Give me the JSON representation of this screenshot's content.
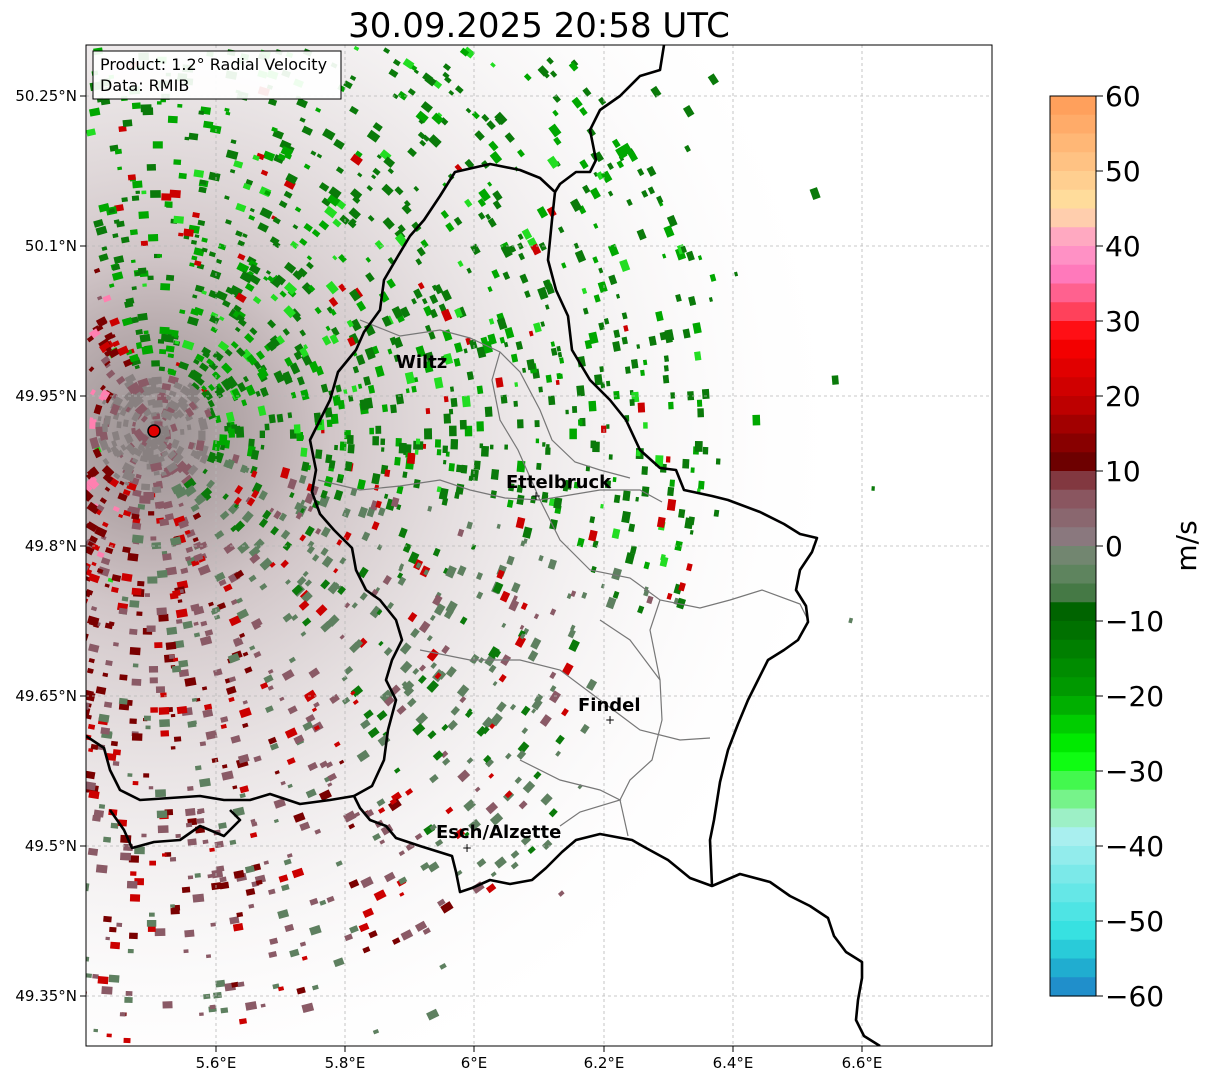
{
  "title": "30.09.2025 20:58 UTC",
  "info": {
    "product": "Product: 1.2° Radial Velocity",
    "source": "Data: RMIB"
  },
  "lat_ticks": [
    "50.25°N",
    "50.1°N",
    "49.95°N",
    "49.8°N",
    "49.65°N",
    "49.5°N",
    "49.35°N"
  ],
  "lon_ticks": [
    "5.6°E",
    "5.8°E",
    "6°E",
    "6.2°E",
    "6.4°E",
    "6.6°E"
  ],
  "cities": [
    {
      "name": "Wiltz"
    },
    {
      "name": "Ettelbruck"
    },
    {
      "name": "Findel"
    },
    {
      "name": "Esch/Alzette"
    }
  ],
  "colorbar": {
    "label": "m/s",
    "min": -60,
    "max": 60,
    "tick_labels": [
      "60",
      "50",
      "40",
      "30",
      "20",
      "10",
      "0",
      "−10",
      "−20",
      "−30",
      "−40",
      "−50",
      "−60"
    ],
    "stops": [
      {
        "value": 60,
        "color": "#ff9a55"
      },
      {
        "value": 50,
        "color": "#ffc88a"
      },
      {
        "value": 45,
        "color": "#ffe3a0"
      },
      {
        "value": 42,
        "color": "#ffb0c0"
      },
      {
        "value": 37,
        "color": "#ff80c8"
      },
      {
        "value": 32,
        "color": "#ff5070"
      },
      {
        "value": 28,
        "color": "#ff0000"
      },
      {
        "value": 19,
        "color": "#c00000"
      },
      {
        "value": 11,
        "color": "#6a0000"
      },
      {
        "value": 8,
        "color": "#8a4a55"
      },
      {
        "value": 1,
        "color": "#8a7a80"
      },
      {
        "value": -2,
        "color": "#6a8a6a"
      },
      {
        "value": -6,
        "color": "#4f7d4f"
      },
      {
        "value": -8,
        "color": "#006000"
      },
      {
        "value": -20,
        "color": "#00a000"
      },
      {
        "value": -28,
        "color": "#00ff00"
      },
      {
        "value": -35,
        "color": "#90f0a8"
      },
      {
        "value": -38,
        "color": "#b0f0f0"
      },
      {
        "value": -52,
        "color": "#30e0e0"
      },
      {
        "value": -56,
        "color": "#20b0d0"
      },
      {
        "value": -60,
        "color": "#2080c8"
      }
    ]
  },
  "radar_colors": {
    "green_dark": "#0a7a0a",
    "green": "#00a800",
    "green_light": "#22dd22",
    "gray_green": "#5e8060",
    "gray": "#888080",
    "maroon": "#7a0000",
    "red": "#cc0000",
    "pink": "#ff80b0",
    "mauve": "#8a5a66"
  }
}
